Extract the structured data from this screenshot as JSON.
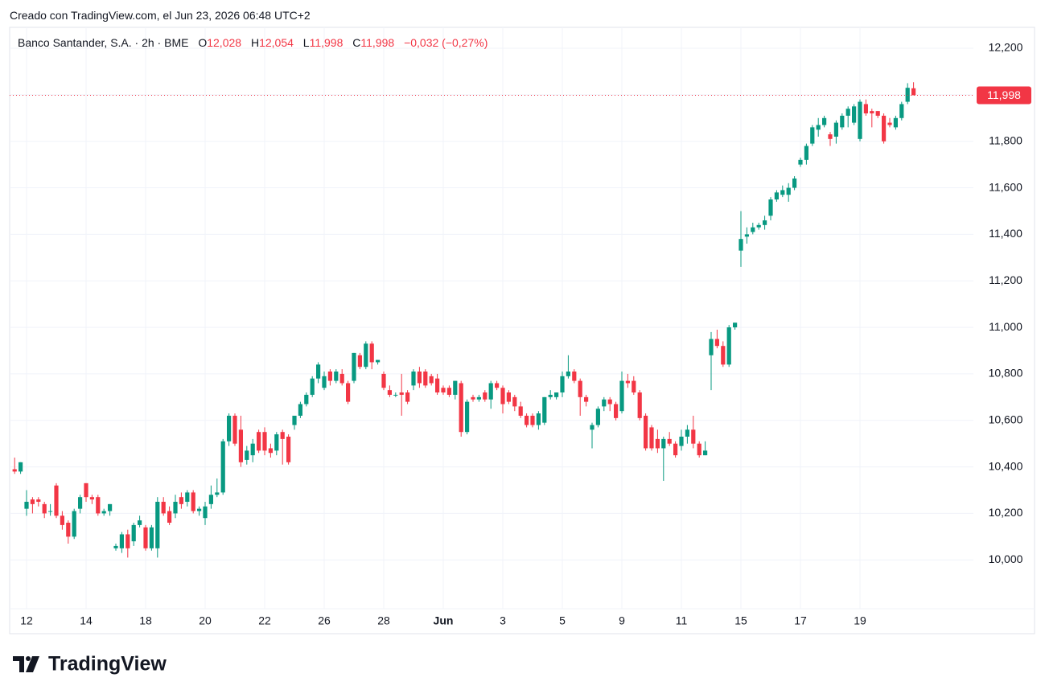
{
  "header": {
    "created": "Creado con TradingView.com, el Jun 23, 2026 06:48 UTC+2",
    "symbol": "Banco Santander, S.A. · 2h · BME",
    "open_label": "O",
    "open": "12,028",
    "high_label": "H",
    "high": "12,054",
    "low_label": "L",
    "low": "11,998",
    "close_label": "C",
    "close": "11,998",
    "change": "−0,032 (−0,27%)"
  },
  "logo": "TradingView",
  "chart_data": {
    "type": "candlestick",
    "up_color": "#089981",
    "down_color": "#f23645",
    "grid": true,
    "ylim": [
      9.79,
      12.29
    ],
    "yticks": [
      {
        "value": 10.0,
        "label": "10,000"
      },
      {
        "value": 10.2,
        "label": "10,200"
      },
      {
        "value": 10.4,
        "label": "10,400"
      },
      {
        "value": 10.6,
        "label": "10,600"
      },
      {
        "value": 10.8,
        "label": "10,800"
      },
      {
        "value": 11.0,
        "label": "11,000"
      },
      {
        "value": 11.2,
        "label": "11,200"
      },
      {
        "value": 11.4,
        "label": "11,400"
      },
      {
        "value": 11.6,
        "label": "11,600"
      },
      {
        "value": 11.8,
        "label": "11,800"
      },
      {
        "value": 12.0,
        "label": "12,000"
      },
      {
        "value": 12.2,
        "label": "12,200"
      }
    ],
    "last_price": {
      "value": 11.998,
      "label": "11,998"
    },
    "categories": [
      null,
      null,
      "12",
      null,
      null,
      null,
      null,
      null,
      null,
      null,
      null,
      null,
      "14",
      null,
      null,
      null,
      null,
      null,
      null,
      null,
      null,
      null,
      "18",
      null,
      null,
      null,
      null,
      null,
      null,
      null,
      null,
      null,
      "20",
      null,
      null,
      null,
      null,
      null,
      null,
      null,
      null,
      null,
      "22",
      null,
      null,
      null,
      null,
      null,
      null,
      null,
      null,
      null,
      "26",
      null,
      null,
      null,
      null,
      null,
      null,
      null,
      null,
      null,
      "28",
      null,
      null,
      null,
      null,
      null,
      null,
      null,
      null,
      null,
      "Jun",
      null,
      null,
      null,
      null,
      null,
      null,
      null,
      null,
      null,
      "3",
      null,
      null,
      null,
      null,
      null,
      null,
      null,
      null,
      null,
      "5",
      null,
      null,
      null,
      null,
      null,
      null,
      null,
      null,
      null,
      "9",
      null,
      null,
      null,
      null,
      null,
      null,
      null,
      null,
      null,
      "11",
      null,
      null,
      null,
      null,
      null,
      null,
      null,
      null,
      null,
      "15",
      null,
      null,
      null,
      null,
      null,
      null,
      null,
      null,
      null,
      "17",
      null,
      null,
      null,
      null,
      null,
      null,
      null,
      null,
      null,
      "19",
      null,
      null,
      null,
      null,
      null,
      null,
      null,
      null,
      null
    ],
    "candles": [
      {
        "open": 10.39,
        "high": 10.44,
        "low": 10.37,
        "close": 10.38
      },
      {
        "open": 10.38,
        "high": 10.42,
        "low": 10.37,
        "close": 10.42
      },
      {
        "open": 10.22,
        "high": 10.3,
        "low": 10.19,
        "close": 10.25
      },
      {
        "open": 10.26,
        "high": 10.27,
        "low": 10.2,
        "close": 10.24
      },
      {
        "open": 10.26,
        "high": 10.27,
        "low": 10.23,
        "close": 10.25
      },
      {
        "open": 10.24,
        "high": 10.25,
        "low": 10.18,
        "close": 10.2
      },
      {
        "open": 10.21,
        "high": 10.24,
        "low": 10.19,
        "close": 10.21
      },
      {
        "open": 10.32,
        "high": 10.33,
        "low": 10.18,
        "close": 10.19
      },
      {
        "open": 10.19,
        "high": 10.21,
        "low": 10.13,
        "close": 10.15
      },
      {
        "open": 10.16,
        "high": 10.17,
        "low": 10.07,
        "close": 10.1
      },
      {
        "open": 10.1,
        "high": 10.22,
        "low": 10.09,
        "close": 10.21
      },
      {
        "open": 10.22,
        "high": 10.28,
        "low": 10.2,
        "close": 10.27
      },
      {
        "open": 10.33,
        "high": 10.33,
        "low": 10.25,
        "close": 10.27
      },
      {
        "open": 10.27,
        "high": 10.28,
        "low": 10.24,
        "close": 10.26
      },
      {
        "open": 10.27,
        "high": 10.28,
        "low": 10.19,
        "close": 10.2
      },
      {
        "open": 10.2,
        "high": 10.22,
        "low": 10.19,
        "close": 10.21
      },
      {
        "open": 10.21,
        "high": 10.24,
        "low": 10.19,
        "close": 10.24
      },
      {
        "open": 10.05,
        "high": 10.07,
        "low": 10.04,
        "close": 10.06
      },
      {
        "open": 10.05,
        "high": 10.12,
        "low": 10.03,
        "close": 10.11
      },
      {
        "open": 10.11,
        "high": 10.13,
        "low": 10.01,
        "close": 10.05
      },
      {
        "open": 10.08,
        "high": 10.16,
        "low": 10.06,
        "close": 10.15
      },
      {
        "open": 10.15,
        "high": 10.19,
        "low": 10.14,
        "close": 10.17
      },
      {
        "open": 10.14,
        "high": 10.15,
        "low": 10.04,
        "close": 10.05
      },
      {
        "open": 10.05,
        "high": 10.15,
        "low": 10.04,
        "close": 10.14
      },
      {
        "open": 10.05,
        "high": 10.27,
        "low": 10.01,
        "close": 10.25
      },
      {
        "open": 10.25,
        "high": 10.27,
        "low": 10.19,
        "close": 10.2
      },
      {
        "open": 10.21,
        "high": 10.23,
        "low": 10.15,
        "close": 10.16
      },
      {
        "open": 10.2,
        "high": 10.28,
        "low": 10.18,
        "close": 10.25
      },
      {
        "open": 10.27,
        "high": 10.29,
        "low": 10.22,
        "close": 10.24
      },
      {
        "open": 10.25,
        "high": 10.3,
        "low": 10.23,
        "close": 10.29
      },
      {
        "open": 10.29,
        "high": 10.3,
        "low": 10.2,
        "close": 10.21
      },
      {
        "open": 10.21,
        "high": 10.23,
        "low": 10.19,
        "close": 10.22
      },
      {
        "open": 10.18,
        "high": 10.25,
        "low": 10.15,
        "close": 10.23
      },
      {
        "open": 10.24,
        "high": 10.32,
        "low": 10.22,
        "close": 10.28
      },
      {
        "open": 10.28,
        "high": 10.35,
        "low": 10.27,
        "close": 10.29
      },
      {
        "open": 10.29,
        "high": 10.52,
        "low": 10.28,
        "close": 10.51
      },
      {
        "open": 10.51,
        "high": 10.63,
        "low": 10.49,
        "close": 10.62
      },
      {
        "open": 10.62,
        "high": 10.63,
        "low": 10.49,
        "close": 10.5
      },
      {
        "open": 10.56,
        "high": 10.62,
        "low": 10.4,
        "close": 10.42
      },
      {
        "open": 10.43,
        "high": 10.49,
        "low": 10.41,
        "close": 10.47
      },
      {
        "open": 10.45,
        "high": 10.52,
        "low": 10.42,
        "close": 10.5
      },
      {
        "open": 10.55,
        "high": 10.56,
        "low": 10.46,
        "close": 10.47
      },
      {
        "open": 10.55,
        "high": 10.57,
        "low": 10.45,
        "close": 10.47
      },
      {
        "open": 10.48,
        "high": 10.5,
        "low": 10.44,
        "close": 10.46
      },
      {
        "open": 10.47,
        "high": 10.55,
        "low": 10.45,
        "close": 10.54
      },
      {
        "open": 10.55,
        "high": 10.56,
        "low": 10.41,
        "close": 10.52
      },
      {
        "open": 10.53,
        "high": 10.54,
        "low": 10.41,
        "close": 10.42
      },
      {
        "open": 10.58,
        "high": 10.62,
        "low": 10.56,
        "close": 10.62
      },
      {
        "open": 10.62,
        "high": 10.68,
        "low": 10.61,
        "close": 10.67
      },
      {
        "open": 10.67,
        "high": 10.72,
        "low": 10.66,
        "close": 10.71
      },
      {
        "open": 10.71,
        "high": 10.79,
        "low": 10.7,
        "close": 10.78
      },
      {
        "open": 10.78,
        "high": 10.85,
        "low": 10.76,
        "close": 10.84
      },
      {
        "open": 10.74,
        "high": 10.81,
        "low": 10.73,
        "close": 10.79
      },
      {
        "open": 10.81,
        "high": 10.82,
        "low": 10.75,
        "close": 10.77
      },
      {
        "open": 10.77,
        "high": 10.82,
        "low": 10.76,
        "close": 10.81
      },
      {
        "open": 10.8,
        "high": 10.82,
        "low": 10.75,
        "close": 10.76
      },
      {
        "open": 10.76,
        "high": 10.77,
        "low": 10.67,
        "close": 10.68
      },
      {
        "open": 10.77,
        "high": 10.89,
        "low": 10.76,
        "close": 10.89
      },
      {
        "open": 10.88,
        "high": 10.89,
        "low": 10.82,
        "close": 10.83
      },
      {
        "open": 10.83,
        "high": 10.94,
        "low": 10.82,
        "close": 10.93
      },
      {
        "open": 10.93,
        "high": 10.94,
        "low": 10.82,
        "close": 10.85
      },
      {
        "open": 10.85,
        "high": 10.86,
        "low": 10.84,
        "close": 10.86
      },
      {
        "open": 10.8,
        "high": 10.81,
        "low": 10.73,
        "close": 10.74
      },
      {
        "open": 10.73,
        "high": 10.75,
        "low": 10.7,
        "close": 10.71
      },
      {
        "open": 10.71,
        "high": 10.72,
        "low": 10.7,
        "close": 10.71
      },
      {
        "open": 10.72,
        "high": 10.8,
        "low": 10.62,
        "close": 10.71
      },
      {
        "open": 10.72,
        "high": 10.73,
        "low": 10.67,
        "close": 10.68
      },
      {
        "open": 10.75,
        "high": 10.82,
        "low": 10.73,
        "close": 10.81
      },
      {
        "open": 10.81,
        "high": 10.83,
        "low": 10.74,
        "close": 10.76
      },
      {
        "open": 10.81,
        "high": 10.82,
        "low": 10.74,
        "close": 10.75
      },
      {
        "open": 10.79,
        "high": 10.8,
        "low": 10.75,
        "close": 10.76
      },
      {
        "open": 10.78,
        "high": 10.8,
        "low": 10.71,
        "close": 10.72
      },
      {
        "open": 10.74,
        "high": 10.75,
        "low": 10.71,
        "close": 10.72
      },
      {
        "open": 10.74,
        "high": 10.75,
        "low": 10.7,
        "close": 10.71
      },
      {
        "open": 10.71,
        "high": 10.77,
        "low": 10.69,
        "close": 10.77
      },
      {
        "open": 10.76,
        "high": 10.77,
        "low": 10.53,
        "close": 10.55
      },
      {
        "open": 10.55,
        "high": 10.69,
        "low": 10.54,
        "close": 10.68
      },
      {
        "open": 10.7,
        "high": 10.71,
        "low": 10.68,
        "close": 10.69
      },
      {
        "open": 10.69,
        "high": 10.71,
        "low": 10.68,
        "close": 10.7
      },
      {
        "open": 10.72,
        "high": 10.73,
        "low": 10.68,
        "close": 10.69
      },
      {
        "open": 10.69,
        "high": 10.77,
        "low": 10.65,
        "close": 10.76
      },
      {
        "open": 10.76,
        "high": 10.77,
        "low": 10.73,
        "close": 10.74
      },
      {
        "open": 10.74,
        "high": 10.75,
        "low": 10.63,
        "close": 10.67
      },
      {
        "open": 10.72,
        "high": 10.73,
        "low": 10.67,
        "close": 10.68
      },
      {
        "open": 10.7,
        "high": 10.71,
        "low": 10.64,
        "close": 10.66
      },
      {
        "open": 10.66,
        "high": 10.68,
        "low": 10.61,
        "close": 10.62
      },
      {
        "open": 10.62,
        "high": 10.63,
        "low": 10.57,
        "close": 10.58
      },
      {
        "open": 10.62,
        "high": 10.63,
        "low": 10.57,
        "close": 10.58
      },
      {
        "open": 10.58,
        "high": 10.64,
        "low": 10.56,
        "close": 10.63
      },
      {
        "open": 10.59,
        "high": 10.7,
        "low": 10.58,
        "close": 10.7
      },
      {
        "open": 10.7,
        "high": 10.73,
        "low": 10.69,
        "close": 10.71
      },
      {
        "open": 10.7,
        "high": 10.72,
        "low": 10.69,
        "close": 10.72
      },
      {
        "open": 10.72,
        "high": 10.81,
        "low": 10.7,
        "close": 10.79
      },
      {
        "open": 10.79,
        "high": 10.88,
        "low": 10.78,
        "close": 10.81
      },
      {
        "open": 10.81,
        "high": 10.82,
        "low": 10.76,
        "close": 10.77
      },
      {
        "open": 10.77,
        "high": 10.78,
        "low": 10.62,
        "close": 10.7
      },
      {
        "open": 10.7,
        "high": 10.71,
        "low": 10.66,
        "close": 10.68
      },
      {
        "open": 10.56,
        "high": 10.59,
        "low": 10.48,
        "close": 10.58
      },
      {
        "open": 10.58,
        "high": 10.66,
        "low": 10.57,
        "close": 10.65
      },
      {
        "open": 10.66,
        "high": 10.7,
        "low": 10.64,
        "close": 10.69
      },
      {
        "open": 10.69,
        "high": 10.7,
        "low": 10.64,
        "close": 10.67
      },
      {
        "open": 10.67,
        "high": 10.68,
        "low": 10.6,
        "close": 10.61
      },
      {
        "open": 10.64,
        "high": 10.81,
        "low": 10.63,
        "close": 10.77
      },
      {
        "open": 10.77,
        "high": 10.8,
        "low": 10.74,
        "close": 10.76
      },
      {
        "open": 10.77,
        "high": 10.79,
        "low": 10.71,
        "close": 10.72
      },
      {
        "open": 10.72,
        "high": 10.73,
        "low": 10.6,
        "close": 10.61
      },
      {
        "open": 10.62,
        "high": 10.63,
        "low": 10.47,
        "close": 10.48
      },
      {
        "open": 10.57,
        "high": 10.58,
        "low": 10.47,
        "close": 10.48
      },
      {
        "open": 10.52,
        "high": 10.56,
        "low": 10.46,
        "close": 10.48
      },
      {
        "open": 10.48,
        "high": 10.53,
        "low": 10.34,
        "close": 10.52
      },
      {
        "open": 10.52,
        "high": 10.55,
        "low": 10.49,
        "close": 10.5
      },
      {
        "open": 10.5,
        "high": 10.51,
        "low": 10.44,
        "close": 10.45
      },
      {
        "open": 10.49,
        "high": 10.56,
        "low": 10.47,
        "close": 10.53
      },
      {
        "open": 10.53,
        "high": 10.58,
        "low": 10.5,
        "close": 10.56
      },
      {
        "open": 10.56,
        "high": 10.62,
        "low": 10.48,
        "close": 10.5
      },
      {
        "open": 10.5,
        "high": 10.51,
        "low": 10.44,
        "close": 10.45
      },
      {
        "open": 10.45,
        "high": 10.51,
        "low": 10.45,
        "close": 10.47
      },
      {
        "open": 10.88,
        "high": 10.98,
        "low": 10.73,
        "close": 10.95
      },
      {
        "open": 10.95,
        "high": 10.99,
        "low": 10.91,
        "close": 10.92
      },
      {
        "open": 10.92,
        "high": 10.94,
        "low": 10.83,
        "close": 10.84
      },
      {
        "open": 10.84,
        "high": 11.01,
        "low": 10.83,
        "close": 11.0
      },
      {
        "open": 11.0,
        "high": 11.02,
        "low": 10.99,
        "close": 11.02
      },
      {
        "open": 11.33,
        "high": 11.5,
        "low": 11.26,
        "close": 11.38
      },
      {
        "open": 11.39,
        "high": 11.43,
        "low": 11.36,
        "close": 11.4
      },
      {
        "open": 11.41,
        "high": 11.45,
        "low": 11.4,
        "close": 11.43
      },
      {
        "open": 11.43,
        "high": 11.45,
        "low": 11.42,
        "close": 11.44
      },
      {
        "open": 11.44,
        "high": 11.48,
        "low": 11.42,
        "close": 11.46
      },
      {
        "open": 11.48,
        "high": 11.56,
        "low": 11.46,
        "close": 11.55
      },
      {
        "open": 11.55,
        "high": 11.59,
        "low": 11.54,
        "close": 11.58
      },
      {
        "open": 11.57,
        "high": 11.61,
        "low": 11.56,
        "close": 11.59
      },
      {
        "open": 11.57,
        "high": 11.62,
        "low": 11.54,
        "close": 11.6
      },
      {
        "open": 11.6,
        "high": 11.65,
        "low": 11.59,
        "close": 11.64
      },
      {
        "open": 11.7,
        "high": 11.73,
        "low": 11.69,
        "close": 11.72
      },
      {
        "open": 11.72,
        "high": 11.79,
        "low": 11.7,
        "close": 11.78
      },
      {
        "open": 11.79,
        "high": 11.87,
        "low": 11.78,
        "close": 11.86
      },
      {
        "open": 11.85,
        "high": 11.9,
        "low": 11.82,
        "close": 11.87
      },
      {
        "open": 11.87,
        "high": 11.91,
        "low": 11.86,
        "close": 11.9
      },
      {
        "open": 11.83,
        "high": 11.84,
        "low": 11.78,
        "close": 11.81
      },
      {
        "open": 11.82,
        "high": 11.89,
        "low": 11.79,
        "close": 11.88
      },
      {
        "open": 11.86,
        "high": 11.92,
        "low": 11.85,
        "close": 11.91
      },
      {
        "open": 11.91,
        "high": 11.95,
        "low": 11.86,
        "close": 11.94
      },
      {
        "open": 11.88,
        "high": 11.96,
        "low": 11.87,
        "close": 11.95
      },
      {
        "open": 11.81,
        "high": 11.98,
        "low": 11.8,
        "close": 11.97
      },
      {
        "open": 11.96,
        "high": 11.98,
        "low": 11.91,
        "close": 11.92
      },
      {
        "open": 11.93,
        "high": 11.94,
        "low": 11.86,
        "close": 11.92
      },
      {
        "open": 11.93,
        "high": 11.93,
        "low": 11.9,
        "close": 11.91
      },
      {
        "open": 11.91,
        "high": 11.92,
        "low": 11.79,
        "close": 11.8
      },
      {
        "open": 11.88,
        "high": 11.9,
        "low": 11.86,
        "close": 11.87
      },
      {
        "open": 11.86,
        "high": 11.91,
        "low": 11.85,
        "close": 11.9
      },
      {
        "open": 11.9,
        "high": 11.97,
        "low": 11.89,
        "close": 11.96
      },
      {
        "open": 11.97,
        "high": 12.05,
        "low": 11.96,
        "close": 12.03
      },
      {
        "open": 12.028,
        "high": 12.054,
        "low": 11.998,
        "close": 11.998
      }
    ]
  }
}
